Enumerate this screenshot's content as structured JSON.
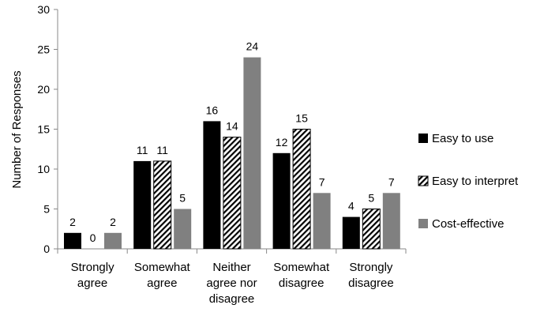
{
  "chart_data": {
    "type": "bar",
    "title": "",
    "xlabel": "",
    "ylabel": "Number of Responses",
    "ylim": [
      0,
      30
    ],
    "yticks": [
      0,
      5,
      10,
      15,
      20,
      25,
      30
    ],
    "grid": false,
    "legend_position": "right",
    "categories": [
      [
        "Strongly",
        "agree"
      ],
      [
        "Somewhat",
        "agree"
      ],
      [
        "Neither",
        "agree nor",
        "disagree"
      ],
      [
        "Somewhat",
        "disagree"
      ],
      [
        "Strongly",
        "disagree"
      ]
    ],
    "series": [
      {
        "name": "Easy to use",
        "color": "#000000",
        "pattern": "solid",
        "values": [
          2,
          11,
          16,
          12,
          4
        ]
      },
      {
        "name": "Easy to interpret",
        "color": "#000000",
        "pattern": "hatch",
        "values": [
          0,
          11,
          14,
          15,
          5
        ]
      },
      {
        "name": "Cost-effective",
        "color": "#808080",
        "pattern": "solid",
        "values": [
          2,
          5,
          24,
          7,
          7
        ]
      }
    ]
  }
}
